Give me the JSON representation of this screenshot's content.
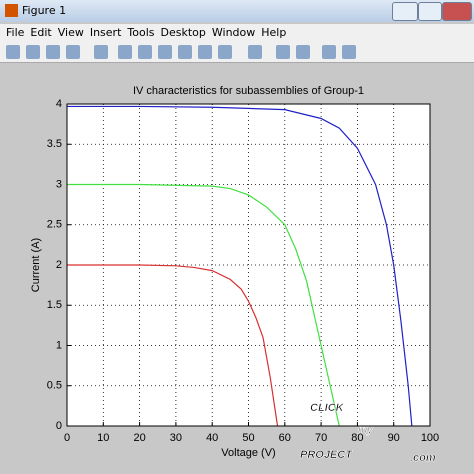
{
  "window": {
    "title": "Figure 1",
    "menu": [
      "File",
      "Edit",
      "View",
      "Insert",
      "Tools",
      "Desktop",
      "Window",
      "Help"
    ]
  },
  "watermark": [
    "CLICK",
    "my",
    "PROJECT",
    ".com"
  ],
  "chart_data": {
    "type": "line",
    "title": "IV characteristics for subassemblies of Group-1",
    "x_label": "Voltage (V)",
    "y_label": "Current (A)",
    "xlim": [
      0,
      100
    ],
    "ylim": [
      0,
      4
    ],
    "xticks": [
      0,
      10,
      20,
      30,
      40,
      50,
      60,
      70,
      80,
      90,
      100
    ],
    "yticks": [
      0,
      0.5,
      1,
      1.5,
      2,
      2.5,
      3,
      3.5,
      4
    ],
    "grid": true,
    "series": [
      {
        "color": "#2020c8",
        "x": [
          0,
          20,
          40,
          60,
          70,
          75,
          80,
          85,
          88,
          90,
          92,
          94,
          95
        ],
        "values": [
          3.97,
          3.97,
          3.96,
          3.93,
          3.82,
          3.7,
          3.45,
          3.0,
          2.5,
          2.0,
          1.3,
          0.5,
          0
        ]
      },
      {
        "color": "#40e040",
        "x": [
          0,
          20,
          40,
          45,
          50,
          55,
          60,
          63,
          66,
          68,
          70,
          72,
          74,
          75
        ],
        "values": [
          3.0,
          3.0,
          2.98,
          2.95,
          2.87,
          2.72,
          2.5,
          2.2,
          1.8,
          1.4,
          1.0,
          0.6,
          0.2,
          0
        ]
      },
      {
        "color": "#d83030",
        "x": [
          0,
          20,
          30,
          35,
          40,
          45,
          48,
          50,
          52,
          54,
          56,
          57,
          58
        ],
        "values": [
          2.0,
          2.0,
          1.99,
          1.97,
          1.93,
          1.82,
          1.7,
          1.55,
          1.35,
          1.1,
          0.6,
          0.3,
          0
        ]
      }
    ]
  }
}
